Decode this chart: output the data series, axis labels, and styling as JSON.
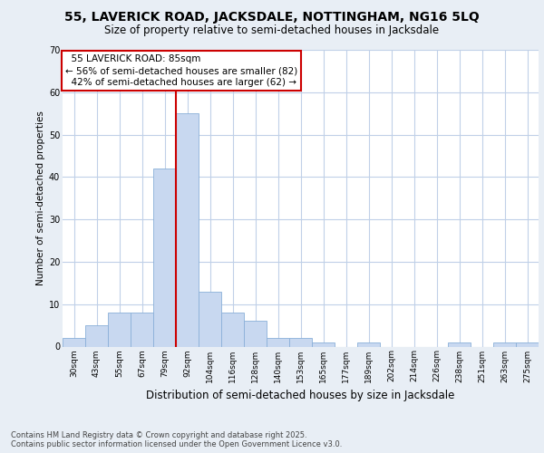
{
  "title_line1": "55, LAVERICK ROAD, JACKSDALE, NOTTINGHAM, NG16 5LQ",
  "title_line2": "Size of property relative to semi-detached houses in Jacksdale",
  "xlabel": "Distribution of semi-detached houses by size in Jacksdale",
  "ylabel": "Number of semi-detached properties",
  "footnote": "Contains HM Land Registry data © Crown copyright and database right 2025.\nContains public sector information licensed under the Open Government Licence v3.0.",
  "bin_labels": [
    "30sqm",
    "43sqm",
    "55sqm",
    "67sqm",
    "79sqm",
    "92sqm",
    "104sqm",
    "116sqm",
    "128sqm",
    "140sqm",
    "153sqm",
    "165sqm",
    "177sqm",
    "189sqm",
    "202sqm",
    "214sqm",
    "226sqm",
    "238sqm",
    "251sqm",
    "263sqm",
    "275sqm"
  ],
  "bar_heights": [
    2,
    5,
    8,
    8,
    42,
    55,
    13,
    8,
    6,
    2,
    2,
    1,
    0,
    1,
    0,
    0,
    0,
    1,
    0,
    1,
    1
  ],
  "bar_color": "#c8d8f0",
  "bar_edge_color": "#8ab0d8",
  "vline_x_bin": 5,
  "vline_color": "#cc0000",
  "annotation_box_edge_color": "#cc0000",
  "property_label": "55 LAVERICK ROAD: 85sqm",
  "pct_smaller": 56,
  "pct_larger": 42,
  "n_smaller": 82,
  "n_larger": 62,
  "ylim": [
    0,
    70
  ],
  "yticks": [
    0,
    10,
    20,
    30,
    40,
    50,
    60,
    70
  ],
  "background_color": "#e8eef5",
  "plot_background": "#ffffff",
  "grid_color": "#c0d0e8",
  "title1_fontsize": 10,
  "title2_fontsize": 8.5,
  "xlabel_fontsize": 8.5,
  "ylabel_fontsize": 7.5,
  "tick_fontsize": 6.5,
  "footnote_fontsize": 6,
  "ann_fontsize": 7.5
}
